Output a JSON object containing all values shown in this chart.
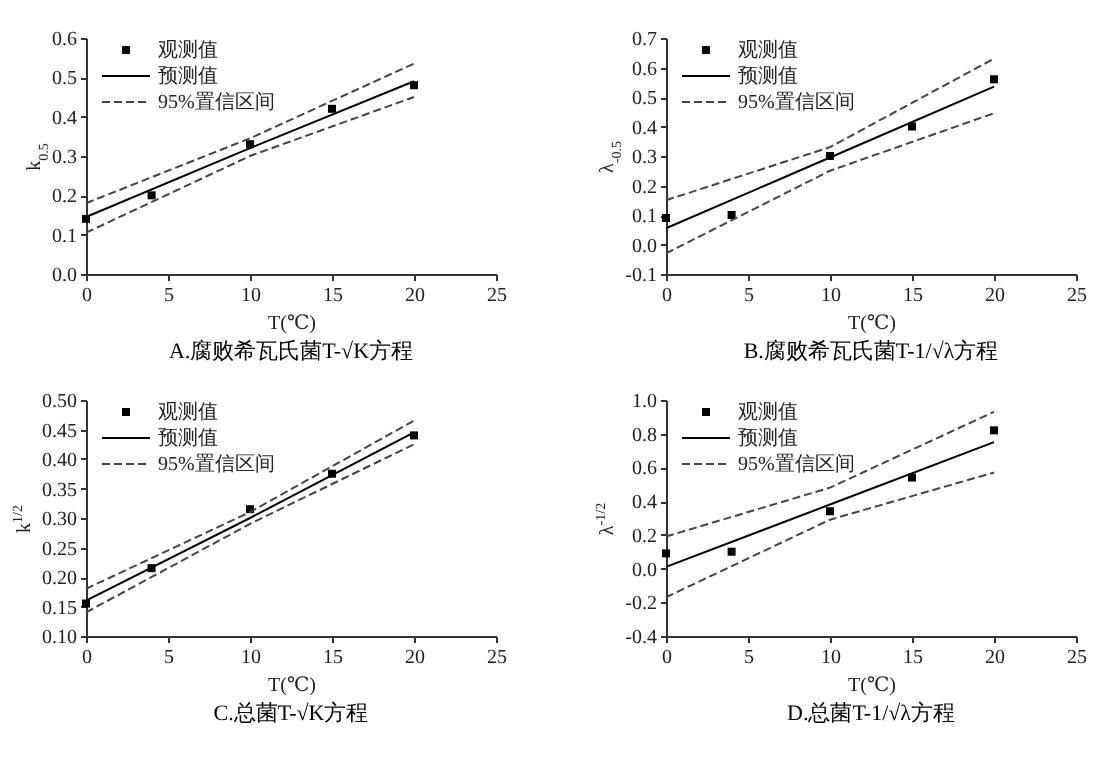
{
  "chart_data": [
    {
      "type": "scatter",
      "title": "A.腐败希瓦氏菌T-√K方程",
      "xlabel": "T(℃)",
      "ylabel": "k$_{0.5}$",
      "xlim": [
        0,
        25
      ],
      "xticks": [
        0,
        5,
        10,
        15,
        20,
        25
      ],
      "ylim": [
        0,
        0.6
      ],
      "yticks": [
        {
          "value": 0,
          "label": "0.0"
        },
        0.1,
        0.2,
        0.3,
        0.4,
        0.5,
        0.6
      ],
      "grid": false,
      "legend": "top left",
      "series": [
        {
          "name": "观测值",
          "type": "scatter",
          "marker": "square",
          "color": "#000000",
          "x": [
            0,
            4,
            10,
            15,
            20
          ],
          "values": [
            0.14,
            0.2,
            0.33,
            0.42,
            0.48
          ]
        },
        {
          "name": "预测值",
          "type": "line",
          "line_style": "solid",
          "color": "#000000",
          "x": [
            0,
            10,
            20
          ],
          "values": [
            0.145,
            0.32,
            0.49
          ]
        },
        {
          "name": "95%置信区间",
          "type": "line",
          "line_style": "dashed",
          "color": "#444444",
          "x": [
            0,
            10,
            20
          ],
          "values": [
            0.18,
            0.345,
            0.535
          ]
        },
        {
          "type": "line",
          "line_style": "dashed",
          "color": "#444444",
          "x": [
            0,
            10,
            20
          ],
          "values": [
            0.105,
            0.3,
            0.45
          ]
        }
      ]
    },
    {
      "type": "scatter",
      "title": "B.腐败希瓦氏菌T-1/√λ方程",
      "xlabel": "T(℃)",
      "ylabel": "λ$_{-0.5}$",
      "xlim": [
        0,
        25
      ],
      "xticks": [
        0,
        5,
        10,
        15,
        20,
        25
      ],
      "ylim": [
        -0.1,
        0.7
      ],
      "yticks": [
        -0.1,
        {
          "value": 0,
          "label": "0.0"
        },
        0.1,
        0.2,
        0.3,
        0.4,
        0.5,
        0.6,
        0.7
      ],
      "grid": false,
      "legend": "top left",
      "series": [
        {
          "name": "观测值",
          "type": "scatter",
          "marker": "square",
          "color": "#000000",
          "x": [
            0,
            4,
            10,
            15,
            20
          ],
          "values": [
            0.09,
            0.1,
            0.3,
            0.4,
            0.56
          ]
        },
        {
          "name": "预测值",
          "type": "line",
          "line_style": "solid",
          "color": "#000000",
          "x": [
            0,
            10,
            20
          ],
          "values": [
            0.055,
            0.295,
            0.535
          ]
        },
        {
          "name": "95%置信区间",
          "type": "line",
          "line_style": "dashed",
          "color": "#444444",
          "x": [
            0,
            10,
            20
          ],
          "values": [
            0.15,
            0.33,
            0.63
          ]
        },
        {
          "type": "line",
          "line_style": "dashed",
          "color": "#444444",
          "x": [
            0,
            10,
            20
          ],
          "values": [
            -0.03,
            0.25,
            0.445
          ]
        }
      ]
    },
    {
      "type": "scatter",
      "title": "C.总菌T-√K方程",
      "xlabel": "T(℃)",
      "ylabel": "k$^{1/2}$",
      "xlim": [
        0,
        25
      ],
      "xticks": [
        0,
        5,
        10,
        15,
        20,
        25
      ],
      "ylim": [
        0.1,
        0.5
      ],
      "yticks": [
        {
          "value": 0.1,
          "label": "0.10"
        },
        0.15,
        {
          "value": 0.2,
          "label": "0.20"
        },
        0.25,
        {
          "value": 0.3,
          "label": "0.30"
        },
        0.35,
        {
          "value": 0.4,
          "label": "0.40"
        },
        0.45,
        {
          "value": 0.5,
          "label": "0.50"
        }
      ],
      "grid": false,
      "legend": "top left",
      "series": [
        {
          "name": "观测值",
          "type": "scatter",
          "marker": "square",
          "color": "#000000",
          "x": [
            0,
            4,
            10,
            15,
            20
          ],
          "values": [
            0.155,
            0.215,
            0.315,
            0.375,
            0.44
          ]
        },
        {
          "name": "预测值",
          "type": "line",
          "line_style": "solid",
          "color": "#000000",
          "x": [
            0,
            10,
            20
          ],
          "values": [
            0.16,
            0.3,
            0.445
          ]
        },
        {
          "name": "95%置信区间",
          "type": "line",
          "line_style": "dashed",
          "color": "#444444",
          "x": [
            0,
            10,
            20
          ],
          "values": [
            0.18,
            0.31,
            0.465
          ]
        },
        {
          "type": "line",
          "line_style": "dashed",
          "color": "#444444",
          "x": [
            0,
            10,
            20
          ],
          "values": [
            0.14,
            0.29,
            0.425
          ]
        }
      ]
    },
    {
      "type": "scatter",
      "title": "D.总菌T-1/√λ方程",
      "xlabel": "T(℃)",
      "ylabel": "λ$^{-1/2}$",
      "xlim": [
        0,
        25
      ],
      "xticks": [
        0,
        5,
        10,
        15,
        20,
        25
      ],
      "ylim": [
        -0.4,
        1.0
      ],
      "yticks": [
        -0.4,
        -0.2,
        {
          "value": 0,
          "label": "0.0"
        },
        0.2,
        0.4,
        0.6,
        0.8,
        {
          "value": 1,
          "label": "1.0"
        }
      ],
      "grid": false,
      "legend": "top left",
      "series": [
        {
          "name": "观测值",
          "type": "scatter",
          "marker": "square",
          "color": "#000000",
          "x": [
            0,
            4,
            10,
            15,
            20
          ],
          "values": [
            0.09,
            0.1,
            0.34,
            0.54,
            0.82
          ]
        },
        {
          "name": "预测值",
          "type": "line",
          "line_style": "solid",
          "color": "#000000",
          "x": [
            0,
            10,
            20
          ],
          "values": [
            0.01,
            0.38,
            0.75
          ]
        },
        {
          "name": "95%置信区间",
          "type": "line",
          "line_style": "dashed",
          "color": "#444444",
          "x": [
            0,
            10,
            20
          ],
          "values": [
            0.19,
            0.48,
            0.93
          ]
        },
        {
          "type": "line",
          "line_style": "dashed",
          "color": "#444444",
          "x": [
            0,
            10,
            20
          ],
          "values": [
            -0.17,
            0.29,
            0.57
          ]
        }
      ]
    }
  ]
}
